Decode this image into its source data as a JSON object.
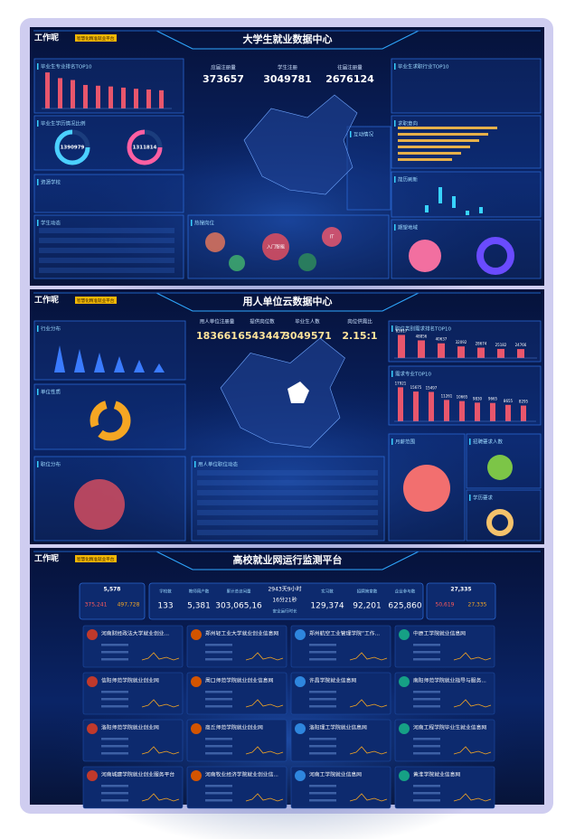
{
  "logo": "工作呢",
  "tag": "智慧化精准就业平台",
  "dashboards": [
    {
      "title": "大学生就业数据中心",
      "stats": [
        {
          "label": "应届注册量",
          "value": "373657"
        },
        {
          "label": "学生注册",
          "value": "3049781"
        },
        {
          "label": "往届注册量",
          "value": "2676124"
        }
      ],
      "panels": [
        "毕业生专业排名TOP10",
        "毕业生学历情况比例",
        "资源学校",
        "学生动态",
        "互动情况",
        "热搜岗位",
        "毕业生求职行业TOP10",
        "求职意向",
        "简历刷新",
        "期望地域"
      ],
      "major_rank": {
        "values": [
          95,
          80,
          75,
          62,
          60,
          58,
          55,
          52,
          50,
          48
        ],
        "ylim": [
          0,
          100
        ],
        "color": "#e8566c"
      },
      "donuts": [
        "1390979",
        "1311814"
      ],
      "hot_jobs": [
        "入门智能",
        "IT"
      ]
    },
    {
      "title": "用人单位云数据中心",
      "stats": [
        {
          "label": "用人单位注册量",
          "value": "183661"
        },
        {
          "label": "提供岗位数",
          "value": "6543447"
        },
        {
          "label": "毕业生人数",
          "value": "3049571"
        },
        {
          "label": "岗位供需比",
          "value": "2.15:1"
        }
      ],
      "panels": [
        "行业分布",
        "单位性质",
        "职位分布",
        "用人单位职位动态",
        "职位类别需求排名TOP10",
        "需求专业TOP10",
        "月薪范围",
        "招聘要求人数",
        "学历要求"
      ],
      "job_rank": {
        "values": [
          63917,
          48856,
          40637,
          32092,
          28674,
          25182,
          24766
        ],
        "ylim": [
          0,
          70000
        ],
        "color": "#e8566c"
      },
      "major_rank": {
        "values": [
          17921,
          15675,
          15497,
          11261,
          10665,
          9830,
          9665,
          8655,
          8295
        ],
        "ylim": [
          0,
          20000
        ],
        "color": "#e8566c"
      }
    },
    {
      "title": "高校就业网运行监测平台",
      "summary_left": [
        "5,578",
        "375,241",
        "497,728"
      ],
      "stats": [
        {
          "label": "学校数",
          "value": "133"
        },
        {
          "label": "教师用户数",
          "value": "5,381"
        },
        {
          "label": "累计总访问量",
          "value": "303,065,16"
        },
        {
          "label": "安全运行时长",
          "value": "2943天9小时",
          "extra": "16分21秒"
        },
        {
          "label": "实习数",
          "value": "129,374"
        },
        {
          "label": "招聘简章数",
          "value": "92,201"
        },
        {
          "label": "企业参与数",
          "value": "625,860"
        }
      ],
      "summary_right": [
        "27,335",
        "50,619",
        "27,335"
      ],
      "schools": [
        "河南财经政法大学就业创业...",
        "郑州轻工业大学就业创业信息网",
        "郑州航空工业管理学院“工作...",
        "中原工学院就业信息网",
        "信阳师范学院就业创业网",
        "周口师范学院就业创业信息网",
        "许昌学院就业信息网",
        "南阳师范学院就业指导与服务...",
        "洛阳师范学院就业创业网",
        "商丘师范学院就业创业网",
        "洛阳理工学院就业信息网",
        "河南工程学院毕业生就业信息网",
        "河南城建学院就业创业服务平台",
        "河南牧业经济学院就业创业信...",
        "河南工学院就业信息网",
        "黄淮学院就业信息网"
      ]
    }
  ]
}
